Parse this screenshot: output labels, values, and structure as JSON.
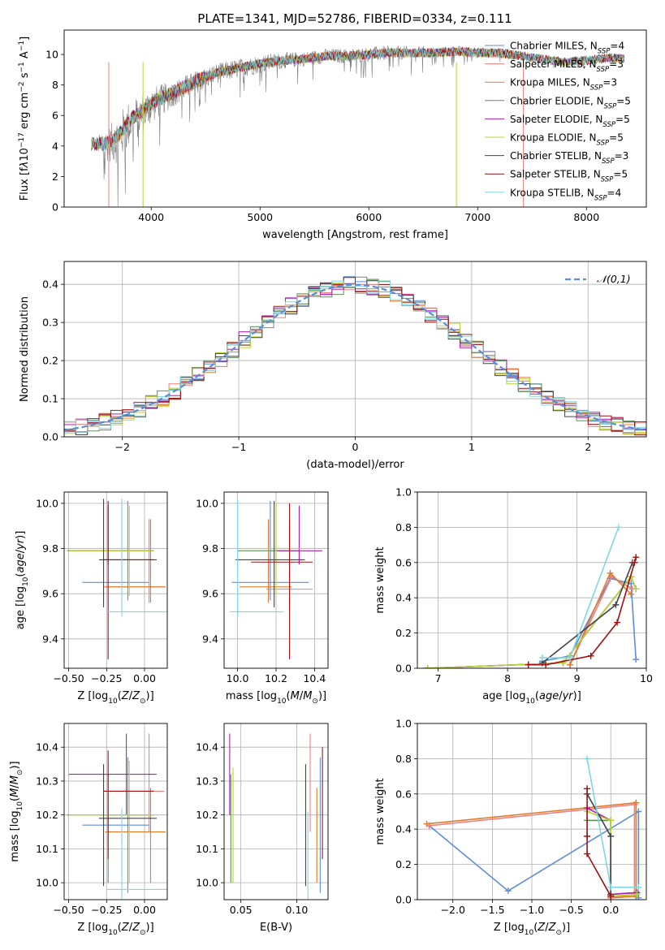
{
  "figure_title": "PLATE=1341, MJD=52786, FIBERID=0334, z=0.111",
  "colors": {
    "Chabrier MILES": "#5b8dd9",
    "Salpeter MILES": "#f08080",
    "Kroupa MILES": "#e07b2a",
    "Chabrier ELODIE": "#5f8f5f",
    "Salpeter ELODIE": "#b01fb0",
    "Kroupa ELODIE": "#b5d630",
    "Chabrier STELIB": "#444444",
    "Salpeter STELIB": "#a01010",
    "Kroupa STELIB": "#7fd8e0",
    "data": "#808080",
    "normal": "#5b8dd9"
  },
  "chart_data": [
    {
      "id": "spectrum",
      "type": "line",
      "xlabel": "wavelength [Angstrom, rest frame]",
      "ylabel": "Flux [f",
      "xlim": [
        3200,
        8550
      ],
      "ylim": [
        0,
        11.6
      ],
      "xticks": [
        4000,
        5000,
        6000,
        7000,
        8000
      ],
      "yticks": [
        0,
        2,
        4,
        6,
        8,
        10
      ],
      "grid": false,
      "legend_position": "top-right",
      "legend": [
        {
          "name": "Chabrier MILES",
          "n": "4"
        },
        {
          "name": "Salpeter MILES",
          "n": "3"
        },
        {
          "name": "Kroupa MILES",
          "n": "3"
        },
        {
          "name": "Chabrier ELODIE",
          "n": "5"
        },
        {
          "name": "Salpeter ELODIE",
          "n": "5"
        },
        {
          "name": "Kroupa ELODIE",
          "n": "5"
        },
        {
          "name": "Chabrier STELIB",
          "n": "3"
        },
        {
          "name": "Salpeter STELIB",
          "n": "5"
        },
        {
          "name": "Kroupa STELIB",
          "n": "4"
        }
      ],
      "data_envelope": {
        "x": [
          3450,
          3600,
          3700,
          3800,
          3900,
          4000,
          4200,
          4400,
          4600,
          4800,
          5000,
          5200,
          5400,
          5600,
          5800,
          6000,
          6200,
          6400,
          6600,
          6800,
          7000,
          7200,
          7400,
          7600,
          7800,
          8000,
          8200,
          8350
        ],
        "y": [
          4.2,
          4.3,
          4.8,
          5.8,
          6.3,
          6.9,
          7.6,
          8.3,
          8.9,
          9.2,
          9.5,
          9.7,
          9.8,
          10.0,
          10.0,
          10.1,
          10.2,
          10.2,
          10.2,
          10.3,
          10.2,
          10.2,
          10.0,
          9.8,
          9.6,
          9.7,
          9.9,
          9.8
        ],
        "noise": [
          0.5,
          2.0,
          3.0,
          2.8,
          2.5,
          2.2,
          1.6,
          1.4,
          1.2,
          1.2,
          1.1,
          1.0,
          0.9,
          0.9,
          0.9,
          0.9,
          0.9,
          0.8,
          0.7,
          0.6,
          0.6,
          0.5,
          0.4,
          0.3,
          0.3,
          0.3,
          0.3,
          0.3
        ]
      },
      "model_drops": [
        {
          "x": 3610,
          "to": 0
        },
        {
          "x": 3925,
          "to": 0
        },
        {
          "x": 6805,
          "to": 0
        },
        {
          "x": 7420,
          "to": 0
        }
      ]
    },
    {
      "id": "residuals",
      "type": "histogram",
      "xlabel": "(data-model)/error",
      "ylabel": "Normed distribution",
      "xlim": [
        -2.5,
        2.5
      ],
      "ylim": [
        0,
        0.46
      ],
      "xticks": [
        -2,
        -1,
        0,
        1,
        2
      ],
      "yticks": [
        0.0,
        0.1,
        0.2,
        0.3,
        0.4
      ],
      "grid": true,
      "legend": [
        {
          "name": "𝒩(0,1)"
        }
      ],
      "bin_width": 0.1,
      "bins_start": -2.5
    },
    {
      "id": "z-age",
      "type": "errorbar",
      "xlabel": "Z [log",
      "ylabel": "age  [log",
      "xlim": [
        -0.53,
        0.15
      ],
      "ylim": [
        9.27,
        10.05
      ],
      "xticks": [
        -0.5,
        -0.25,
        0.0
      ],
      "yticks": [
        9.4,
        9.6,
        9.8,
        10.0
      ],
      "grid": true,
      "points": [
        {
          "m": "Chabrier MILES",
          "x": -0.11,
          "xerr": [
            0.3,
            0.14
          ],
          "y": 9.65,
          "yerr": [
            0.08,
            0.36
          ]
        },
        {
          "m": "Salpeter MILES",
          "x": 0.03,
          "xerr": [
            0.3,
            0.1
          ],
          "y": 9.63,
          "yerr": [
            0.07,
            0.3
          ]
        },
        {
          "m": "Kroupa MILES",
          "x": 0.04,
          "xerr": [
            0.3,
            0.1
          ],
          "y": 9.63,
          "yerr": [
            0.07,
            0.3
          ]
        },
        {
          "m": "Chabrier ELODIE",
          "x": -0.24,
          "xerr": [
            0.27,
            0.3
          ],
          "y": 9.79,
          "yerr": [
            0.06,
            0.2
          ]
        },
        {
          "m": "Salpeter ELODIE",
          "x": -0.24,
          "xerr": [
            0.26,
            0.3
          ],
          "y": 9.79,
          "yerr": [
            0.06,
            0.2
          ]
        },
        {
          "m": "Kroupa ELODIE",
          "x": -0.1,
          "xerr": [
            0.4,
            0.16
          ],
          "y": 9.79,
          "yerr": [
            0.2,
            0.2
          ]
        },
        {
          "m": "Chabrier STELIB",
          "x": -0.27,
          "xerr": [
            0.03,
            0.35
          ],
          "y": 9.75,
          "yerr": [
            0.21,
            0.27
          ]
        },
        {
          "m": "Salpeter STELIB",
          "x": -0.24,
          "xerr": [
            0.03,
            0.3
          ],
          "y": 9.75,
          "yerr": [
            0.44,
            0.26
          ]
        },
        {
          "m": "Kroupa STELIB",
          "x": -0.15,
          "xerr": [
            0.1,
            0.3
          ],
          "y": 9.52,
          "yerr": [
            0.02,
            0.5
          ]
        }
      ]
    },
    {
      "id": "mass-age",
      "type": "errorbar",
      "xlabel": "mass [log",
      "ylabel": "",
      "xlim": [
        9.93,
        10.47
      ],
      "ylim": [
        9.27,
        10.05
      ],
      "xticks": [
        10.0,
        10.2,
        10.4
      ],
      "yticks": [
        9.4,
        9.6,
        9.8,
        10.0
      ],
      "grid": true,
      "points": [
        {
          "m": "Chabrier MILES",
          "x": 10.17,
          "xerr": [
            0.2,
            0.2
          ],
          "y": 9.65,
          "yerr": [
            0.08,
            0.36
          ]
        },
        {
          "m": "Salpeter MILES",
          "x": 10.27,
          "xerr": [
            0.12,
            0.12
          ],
          "y": 9.62,
          "yerr": [
            0.07,
            0.3
          ]
        },
        {
          "m": "Kroupa MILES",
          "x": 10.16,
          "xerr": [
            0.15,
            0.12
          ],
          "y": 9.63,
          "yerr": [
            0.07,
            0.3
          ]
        },
        {
          "m": "Chabrier ELODIE",
          "x": 10.2,
          "xerr": [
            0.2,
            0.12
          ],
          "y": 9.79,
          "yerr": [
            0.06,
            0.2
          ]
        },
        {
          "m": "Salpeter ELODIE",
          "x": 10.32,
          "xerr": [
            0.12,
            0.12
          ],
          "y": 9.79,
          "yerr": [
            0.06,
            0.2
          ]
        },
        {
          "m": "Kroupa ELODIE",
          "x": 10.2,
          "xerr": [
            0.2,
            0.16
          ],
          "y": 9.8,
          "yerr": [
            0.2,
            0.2
          ]
        },
        {
          "m": "Chabrier STELIB",
          "x": 10.19,
          "xerr": [
            0.2,
            0.16
          ],
          "y": 9.75,
          "yerr": [
            0.21,
            0.26
          ]
        },
        {
          "m": "Salpeter STELIB",
          "x": 10.27,
          "xerr": [
            0.2,
            0.12
          ],
          "y": 9.74,
          "yerr": [
            0.43,
            0.26
          ]
        },
        {
          "m": "Kroupa STELIB",
          "x": 10.0,
          "xerr": [
            0.04,
            0.24
          ],
          "y": 9.52,
          "yerr": [
            0.02,
            0.5
          ]
        }
      ]
    },
    {
      "id": "age-weight",
      "type": "line",
      "xlabel": "age  [log",
      "ylabel": "mass weight",
      "xlim": [
        6.7,
        10.0
      ],
      "ylim": [
        0,
        1.0
      ],
      "xticks": [
        7,
        8,
        9,
        10
      ],
      "yticks": [
        0.0,
        0.2,
        0.4,
        0.6,
        0.8,
        1.0
      ],
      "grid": true,
      "series": [
        {
          "m": "Chabrier MILES",
          "x": [
            8.5,
            8.9,
            9.48,
            9.78,
            9.85
          ],
          "y": [
            0.04,
            0.07,
            0.51,
            0.48,
            0.05
          ]
        },
        {
          "m": "Salpeter MILES",
          "x": [
            8.9,
            9.5,
            9.8
          ],
          "y": [
            0.02,
            0.52,
            0.45
          ]
        },
        {
          "m": "Kroupa MILES",
          "x": [
            8.9,
            9.48,
            9.78
          ],
          "y": [
            0.02,
            0.54,
            0.42
          ]
        },
        {
          "m": "Chabrier ELODIE",
          "x": [
            6.85,
            8.8,
            9.78,
            9.85
          ],
          "y": [
            0.0,
            0.03,
            0.52,
            0.45
          ]
        },
        {
          "m": "Salpeter ELODIE",
          "x": [
            6.85,
            8.8,
            9.78,
            9.85
          ],
          "y": [
            0.0,
            0.03,
            0.52,
            0.45
          ]
        },
        {
          "m": "Kroupa ELODIE",
          "x": [
            6.85,
            8.8,
            9.78,
            9.85
          ],
          "y": [
            0.0,
            0.03,
            0.52,
            0.45
          ]
        },
        {
          "m": "Chabrier STELIB",
          "x": [
            8.5,
            9.56,
            9.8
          ],
          "y": [
            0.03,
            0.36,
            0.6
          ]
        },
        {
          "m": "Salpeter STELIB",
          "x": [
            8.3,
            8.55,
            9.2,
            9.58,
            9.83,
            9.85
          ],
          "y": [
            0.02,
            0.02,
            0.07,
            0.26,
            0.6,
            0.63
          ]
        },
        {
          "m": "Kroupa STELIB",
          "x": [
            8.5,
            8.9,
            9.6
          ],
          "y": [
            0.06,
            0.06,
            0.8
          ]
        }
      ]
    },
    {
      "id": "z-mass",
      "type": "errorbar",
      "xlabel": "Z [log",
      "ylabel": "mass [log",
      "xlim": [
        -0.53,
        0.15
      ],
      "ylim": [
        9.95,
        10.47
      ],
      "xticks": [
        -0.5,
        -0.25,
        0.0
      ],
      "yticks": [
        10.0,
        10.1,
        10.2,
        10.3,
        10.4
      ],
      "grid": true,
      "points": [
        {
          "m": "Chabrier MILES",
          "x": -0.11,
          "xerr": [
            0.3,
            0.14
          ],
          "y": 10.17,
          "yerr": [
            0.2,
            0.2
          ]
        },
        {
          "m": "Salpeter MILES",
          "x": 0.03,
          "xerr": [
            0.3,
            0.1
          ],
          "y": 10.27,
          "yerr": [
            0.12,
            0.17
          ]
        },
        {
          "m": "Kroupa MILES",
          "x": 0.04,
          "xerr": [
            0.3,
            0.1
          ],
          "y": 10.15,
          "yerr": [
            0.15,
            0.13
          ]
        },
        {
          "m": "Chabrier ELODIE",
          "x": -0.24,
          "xerr": [
            0.27,
            0.3
          ],
          "y": 10.2,
          "yerr": [
            0.2,
            0.12
          ]
        },
        {
          "m": "Salpeter ELODIE",
          "x": -0.12,
          "xerr": [
            0.38,
            0.2
          ],
          "y": 10.32,
          "yerr": [
            0.12,
            0.12
          ]
        },
        {
          "m": "Kroupa ELODIE",
          "x": -0.1,
          "xerr": [
            0.4,
            0.16
          ],
          "y": 10.2,
          "yerr": [
            0.2,
            0.16
          ]
        },
        {
          "m": "Chabrier STELIB",
          "x": -0.27,
          "xerr": [
            0.03,
            0.35
          ],
          "y": 10.19,
          "yerr": [
            0.2,
            0.16
          ]
        },
        {
          "m": "Salpeter STELIB",
          "x": -0.24,
          "xerr": [
            0.03,
            0.3
          ],
          "y": 10.27,
          "yerr": [
            0.2,
            0.12
          ]
        },
        {
          "m": "Kroupa STELIB",
          "x": -0.15,
          "xerr": [
            0.1,
            0.3
          ],
          "y": 9.98,
          "yerr": [
            0.04,
            0.24
          ]
        }
      ]
    },
    {
      "id": "ebv-mass",
      "type": "errorbar",
      "xlabel": "E(B-V)",
      "ylabel": "",
      "xlim": [
        0.035,
        0.128
      ],
      "ylim": [
        9.95,
        10.47
      ],
      "xticks": [
        0.05,
        0.1
      ],
      "yticks": [
        10.0,
        10.1,
        10.2,
        10.3,
        10.4
      ],
      "grid": true,
      "points": [
        {
          "m": "Chabrier MILES",
          "x": 0.121,
          "y": 10.17,
          "yerr": [
            0.2,
            0.2
          ]
        },
        {
          "m": "Salpeter MILES",
          "x": 0.112,
          "y": 10.27,
          "yerr": [
            0.12,
            0.17
          ]
        },
        {
          "m": "Kroupa MILES",
          "x": 0.118,
          "y": 10.15,
          "yerr": [
            0.15,
            0.13
          ]
        },
        {
          "m": "Chabrier ELODIE",
          "x": 0.041,
          "y": 10.2,
          "yerr": [
            0.2,
            0.12
          ]
        },
        {
          "m": "Salpeter ELODIE",
          "x": 0.04,
          "y": 10.32,
          "yerr": [
            0.12,
            0.12
          ]
        },
        {
          "m": "Kroupa ELODIE",
          "x": 0.043,
          "y": 10.2,
          "yerr": [
            0.2,
            0.14
          ]
        },
        {
          "m": "Chabrier STELIB",
          "x": 0.108,
          "y": 10.19,
          "yerr": [
            0.2,
            0.16
          ]
        },
        {
          "m": "Salpeter STELIB",
          "x": 0.123,
          "y": 10.27,
          "yerr": [
            0.2,
            0.13
          ]
        },
        {
          "m": "Kroupa STELIB",
          "x": 0.11,
          "y": 9.98,
          "yerr": [
            0.04,
            0.23
          ]
        }
      ]
    },
    {
      "id": "z-weight",
      "type": "line",
      "xlabel": "Z [log",
      "ylabel": "mass weight",
      "xlim": [
        -2.45,
        0.45
      ],
      "ylim": [
        0,
        1.0
      ],
      "xticks": [
        -2.0,
        -1.5,
        -1.0,
        -0.5,
        0.0
      ],
      "yticks": [
        0.0,
        0.2,
        0.4,
        0.6,
        0.8,
        1.0
      ],
      "grid": true,
      "series": [
        {
          "m": "Chabrier MILES",
          "x": [
            -2.3,
            -1.3,
            0.35,
            0.35
          ],
          "y": [
            0.42,
            0.05,
            0.5,
            0.01
          ]
        },
        {
          "m": "Salpeter MILES",
          "x": [
            -2.3,
            0.3,
            0.3,
            0.0,
            0.0
          ],
          "y": [
            0.42,
            0.54,
            0.03,
            0.01,
            0.02
          ]
        },
        {
          "m": "Kroupa MILES",
          "x": [
            -2.33,
            0.32,
            0.32,
            0.0
          ],
          "y": [
            0.43,
            0.55,
            0.02,
            0.01
          ]
        },
        {
          "m": "Chabrier ELODIE",
          "x": [
            -0.3,
            0.0,
            0.0,
            0.33
          ],
          "y": [
            0.45,
            0.45,
            0.03,
            0.04
          ]
        },
        {
          "m": "Salpeter ELODIE",
          "x": [
            -0.3,
            0.0,
            0.0,
            0.33
          ],
          "y": [
            0.52,
            0.45,
            0.03,
            0.04
          ]
        },
        {
          "m": "Kroupa ELODIE",
          "x": [
            -0.3,
            0.0,
            0.0,
            0.33
          ],
          "y": [
            0.5,
            0.45,
            0.02,
            0.03
          ]
        },
        {
          "m": "Chabrier STELIB",
          "x": [
            -0.3,
            0.0,
            0.0
          ],
          "y": [
            0.6,
            0.36,
            0.03
          ]
        },
        {
          "m": "Salpeter STELIB",
          "x": [
            -0.3,
            -0.3,
            -0.3,
            0.0,
            0.0
          ],
          "y": [
            0.63,
            0.36,
            0.26,
            0.02,
            0.02
          ]
        },
        {
          "m": "Kroupa STELIB",
          "x": [
            -0.3,
            0.0,
            0.35
          ],
          "y": [
            0.8,
            0.07,
            0.07
          ]
        }
      ]
    }
  ],
  "normal_label": "𝒩(0,1)"
}
